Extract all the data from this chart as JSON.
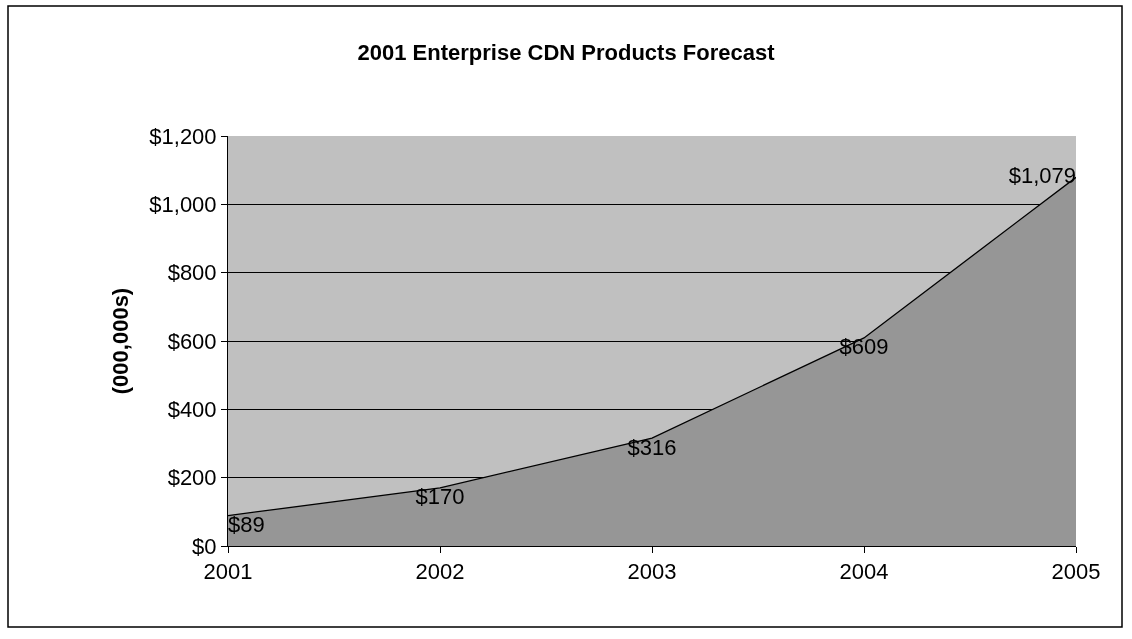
{
  "chart_data": {
    "type": "area",
    "title": "2001 Enterprise CDN Products Forecast",
    "ylabel": "(000,000s)",
    "x": [
      2001,
      2002,
      2003,
      2004,
      2005
    ],
    "series": [
      {
        "color": "#969696",
        "values": [
          89,
          170,
          316,
          609,
          1079
        ],
        "value_labels": [
          "$89",
          "$170",
          "$316",
          "$609",
          "$1,079"
        ]
      }
    ],
    "xlim": [
      2001,
      2005
    ],
    "xticks": [
      2001,
      2002,
      2003,
      2004,
      2005
    ],
    "ylim": [
      0,
      1200
    ],
    "yticks": [
      {
        "value": 0,
        "label": "$0"
      },
      {
        "value": 200,
        "label": "$200"
      },
      {
        "value": 400,
        "label": "$400"
      },
      {
        "value": 600,
        "label": "$600"
      },
      {
        "value": 800,
        "label": "$800"
      },
      {
        "value": 1000,
        "label": "$1,000"
      },
      {
        "value": 1200,
        "label": "$1,200"
      }
    ],
    "grid": "y"
  }
}
